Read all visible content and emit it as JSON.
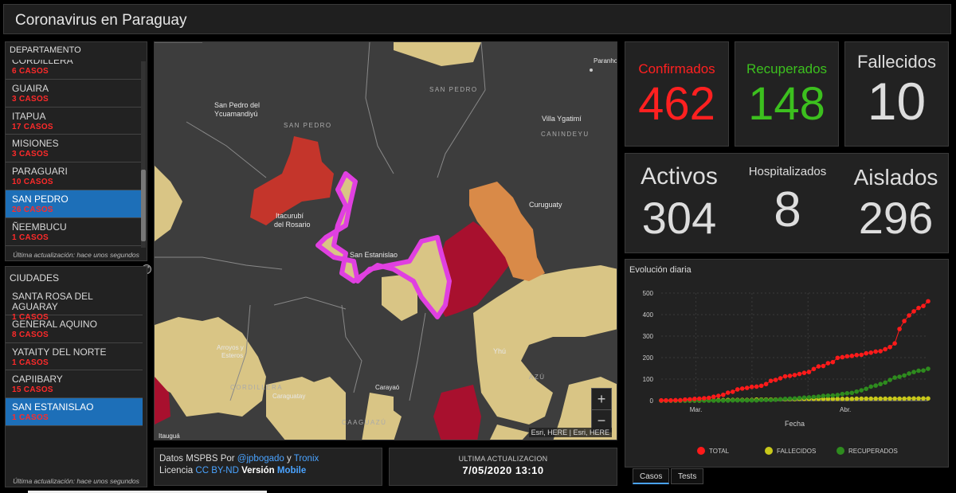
{
  "header": {
    "title": "Coronavirus en Paraguay"
  },
  "departamentos": {
    "heading": "DEPARTAMENTO",
    "items": [
      {
        "name": "CORDILLERA",
        "cases": "6 CASOS",
        "selected": false
      },
      {
        "name": "GUAIRA",
        "cases": "3 CASOS",
        "selected": false
      },
      {
        "name": "ITAPUA",
        "cases": "17 CASOS",
        "selected": false
      },
      {
        "name": "MISIONES",
        "cases": "3 CASOS",
        "selected": false
      },
      {
        "name": "PARAGUARI",
        "cases": "10 CASOS",
        "selected": false
      },
      {
        "name": "SAN PEDRO",
        "cases": "26 CASOS",
        "selected": true
      },
      {
        "name": "ÑEEMBUCU",
        "cases": "1 CASOS",
        "selected": false
      }
    ],
    "footer": "Última actualización: hace unos segundos"
  },
  "ciudades": {
    "heading": "CIUDADES",
    "items": [
      {
        "name": "SANTA ROSA DEL AGUARAY",
        "cases": "1 CASOS",
        "selected": false
      },
      {
        "name": "GENERAL AQUINO",
        "cases": "8 CASOS",
        "selected": false
      },
      {
        "name": "YATAITY DEL NORTE",
        "cases": "1 CASOS",
        "selected": false
      },
      {
        "name": "CAPIIBARY",
        "cases": "15 CASOS",
        "selected": false
      },
      {
        "name": "SAN ESTANISLAO",
        "cases": "1 CASOS",
        "selected": true
      }
    ],
    "footer": "Última actualización: hace unos segundos"
  },
  "map": {
    "labels": {
      "sanpedro_ycua": "San Pedro del",
      "sanpedro_ycua2": "Ycuamandiyú",
      "sanpedro1": "SAN PEDRO",
      "sanpedro2": "SAN PEDRO",
      "villa": "Villa Ygatimí",
      "canindeyu": "CANINDEYU",
      "curuguaty": "Curuguaty",
      "itacurubi": "Itacurubí",
      "itacurubi2": "del Rosario",
      "sanestanislao": "San Estanislao",
      "arroyos": "Arroyos y",
      "arroyos2": "Esteros",
      "cordillera": "CORDILLERA",
      "caraguatay": "Caraguatay",
      "carayao": "Carayaó",
      "yhu": "Yhú",
      "caaguazu": "CAAGUAZÚ",
      "itaugua": "Itauguá",
      "paranho": "Paranho",
      "azu": "AZÚ"
    },
    "zoom_in": "+",
    "zoom_out": "−",
    "attribution": "Esri, HERE | Esri, HERE",
    "colors": {
      "high": "#a8102e",
      "red": "#c4352b",
      "orange": "#d98a48",
      "tan": "#d9c585",
      "selected_outline": "#e040e0",
      "base": "#3d3d3d"
    }
  },
  "datos": {
    "prefix": "Datos MSPBS Por ",
    "author1": "@jpbogado",
    "and": " y ",
    "author2": "Tronix",
    "licencia": "Licencia ",
    "license": "CC BY-ND",
    "version_label": " Versión ",
    "version": "Mobile"
  },
  "ultima": {
    "label": "ULTIMA ACTUALIZACION",
    "value": "7/05/2020 13:10"
  },
  "stats": {
    "confirmados": {
      "label": "Confirmados",
      "value": "462",
      "color": "#ff2020"
    },
    "recuperados": {
      "label": "Recuperados",
      "value": "148",
      "color": "#3cc01e"
    },
    "fallecidos": {
      "label": "Fallecidos",
      "value": "10"
    },
    "activos": {
      "label": "Activos",
      "value": "304"
    },
    "hospitalizados": {
      "label": "Hospitalizados",
      "value": "8"
    },
    "aislados": {
      "label": "Aislados",
      "value": "296"
    }
  },
  "chart_data": {
    "type": "line",
    "title": "Evolución diaria",
    "xlabel": "Fecha",
    "ylabel": "",
    "x_ticks": [
      "Mar.",
      "Abr."
    ],
    "ylim": [
      0,
      500
    ],
    "y_ticks": [
      0,
      100,
      200,
      300,
      400,
      500
    ],
    "grid": true,
    "legend_position": "bottom",
    "series": [
      {
        "name": "TOTAL",
        "color": "#ff1a1a",
        "values": [
          1,
          1,
          1,
          2,
          2,
          5,
          6,
          8,
          9,
          11,
          13,
          18,
          22,
          27,
          37,
          41,
          52,
          56,
          59,
          64,
          65,
          69,
          77,
          92,
          96,
          104,
          113,
          115,
          119,
          124,
          129,
          133,
          147,
          159,
          161,
          174,
          179,
          199,
          202,
          206,
          208,
          212,
          213,
          220,
          223,
          228,
          230,
          239,
          249,
          266,
          333,
          370,
          396,
          415,
          431,
          440,
          462
        ]
      },
      {
        "name": "FALLECIDOS",
        "color": "#c8c81a",
        "values": [
          0,
          0,
          0,
          0,
          0,
          0,
          0,
          0,
          0,
          1,
          1,
          1,
          2,
          2,
          3,
          3,
          3,
          3,
          3,
          3,
          5,
          5,
          5,
          5,
          5,
          6,
          6,
          7,
          7,
          8,
          8,
          8,
          8,
          8,
          8,
          8,
          8,
          8,
          8,
          8,
          8,
          9,
          9,
          9,
          9,
          9,
          9,
          9,
          9,
          9,
          9,
          9,
          10,
          10,
          10,
          10,
          10
        ]
      },
      {
        "name": "RECUPERADOS",
        "color": "#2e8b1e",
        "values": [
          0,
          0,
          0,
          0,
          0,
          0,
          0,
          0,
          0,
          0,
          0,
          0,
          0,
          0,
          0,
          1,
          1,
          1,
          1,
          1,
          1,
          3,
          3,
          3,
          4,
          6,
          8,
          9,
          10,
          12,
          14,
          15,
          17,
          19,
          22,
          23,
          24,
          26,
          31,
          34,
          36,
          42,
          48,
          55,
          65,
          70,
          77,
          84,
          96,
          107,
          111,
          117,
          126,
          133,
          139,
          140,
          148
        ]
      }
    ]
  },
  "tabs": [
    {
      "label": "Casos",
      "active": true
    },
    {
      "label": "Tests",
      "active": false
    }
  ]
}
